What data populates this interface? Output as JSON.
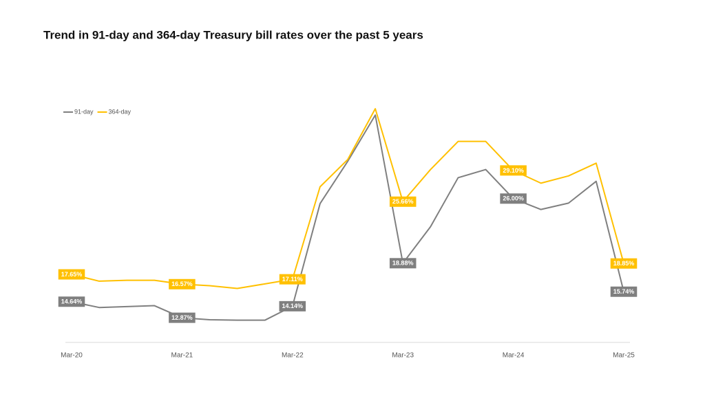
{
  "chart_data": {
    "type": "line",
    "title": "Trend in 91-day and 364-day Treasury bill rates over the past 5 years",
    "categories": [
      "Mar-20",
      null,
      null,
      null,
      "Mar-21",
      null,
      null,
      null,
      "Mar-22",
      null,
      null,
      null,
      "Mar-23",
      null,
      null,
      null,
      "Mar-24",
      null,
      null,
      null,
      "Mar-25"
    ],
    "ylim": [
      10,
      40
    ],
    "legend": "top-left",
    "series": [
      {
        "name": "91-day",
        "color": "#7f7f7f",
        "values": [
          14.64,
          14.0,
          14.1,
          14.2,
          12.87,
          12.65,
          12.6,
          12.6,
          14.14,
          25.45,
          30.1,
          35.2,
          18.88,
          22.9,
          28.3,
          29.2,
          26.0,
          24.8,
          25.5,
          27.9,
          15.74
        ],
        "value_labels": [
          "14.64%",
          null,
          null,
          null,
          "12.87%",
          null,
          null,
          null,
          "14.14%",
          null,
          null,
          null,
          "18.88%",
          null,
          null,
          null,
          "26.00%",
          null,
          null,
          null,
          "15.74%"
        ]
      },
      {
        "name": "364-day",
        "color": "#ffc000",
        "values": [
          17.65,
          16.9,
          17.0,
          17.0,
          16.57,
          16.4,
          16.1,
          16.6,
          17.11,
          27.3,
          30.3,
          35.9,
          25.66,
          29.2,
          32.3,
          32.3,
          29.1,
          27.7,
          28.5,
          29.9,
          18.85
        ],
        "value_labels": [
          "17.65%",
          null,
          null,
          null,
          "16.57%",
          null,
          null,
          null,
          "17.11%",
          null,
          null,
          null,
          "25.66%",
          null,
          null,
          null,
          "29.10%",
          null,
          null,
          null,
          "18.85%"
        ]
      }
    ]
  }
}
